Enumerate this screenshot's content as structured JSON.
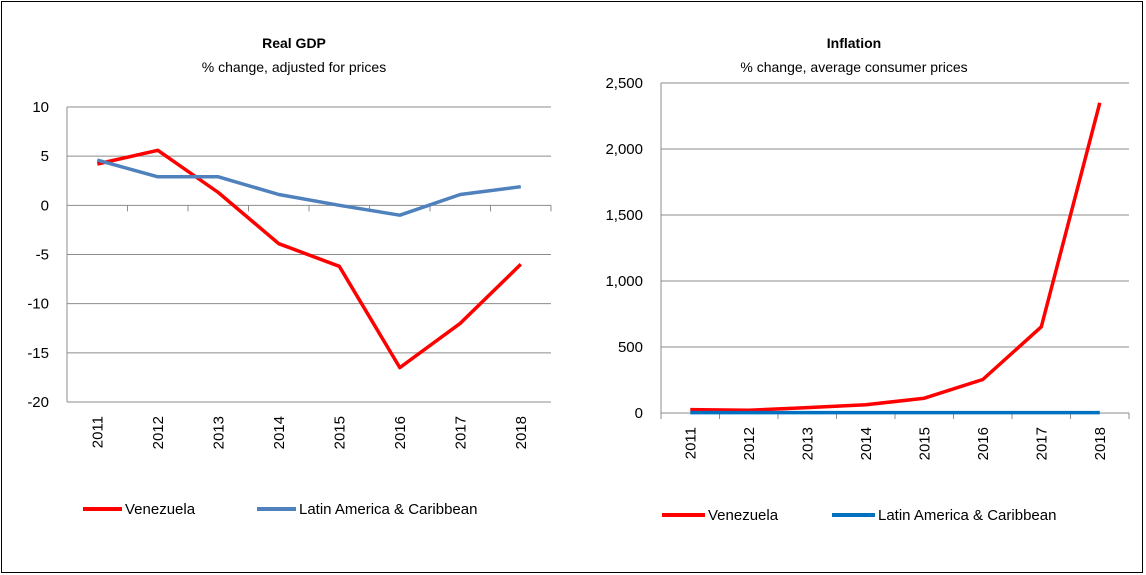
{
  "chart_data": [
    {
      "type": "line",
      "title": "Real GDP",
      "subtitle": "% change, adjusted for prices",
      "x": [
        "2011",
        "2012",
        "2013",
        "2014",
        "2015",
        "2016",
        "2017",
        "2018"
      ],
      "ylim": [
        -20,
        10
      ],
      "yticks": [
        10,
        5,
        0,
        -5,
        -10,
        -15,
        -20
      ],
      "ytick_labels": [
        "10",
        "5",
        "0",
        "-5",
        "-10",
        "-15",
        "-20"
      ],
      "grid": true,
      "legend": "bottom",
      "series": [
        {
          "name": "Venezuela",
          "color": "#ff0000",
          "values": [
            4.2,
            5.6,
            1.3,
            -3.9,
            -6.2,
            -16.5,
            -12.0,
            -6.0
          ]
        },
        {
          "name": "Latin America & Caribbean",
          "color": "#4f81bd",
          "values": [
            4.6,
            2.9,
            2.9,
            1.1,
            0.0,
            -1.0,
            1.1,
            1.9
          ]
        }
      ]
    },
    {
      "type": "line",
      "title": "Inflation",
      "subtitle": "% change, average consumer prices",
      "x": [
        "2011",
        "2012",
        "2013",
        "2014",
        "2015",
        "2016",
        "2017",
        "2018"
      ],
      "ylim": [
        0,
        2500
      ],
      "yticks": [
        2500,
        2000,
        1500,
        1000,
        500,
        0
      ],
      "ytick_labels": [
        "2,500",
        "2,000",
        "1,500",
        "1,000",
        "500",
        "0"
      ],
      "grid": true,
      "legend": "bottom",
      "series": [
        {
          "name": "Venezuela",
          "color": "#ff0000",
          "values": [
            26,
            21,
            41,
            62,
            112,
            254,
            653,
            2350
          ]
        },
        {
          "name": "Latin America & Caribbean",
          "color": "#0070c0",
          "values": [
            3,
            3,
            3,
            3,
            3,
            3,
            3,
            3
          ]
        }
      ]
    }
  ]
}
